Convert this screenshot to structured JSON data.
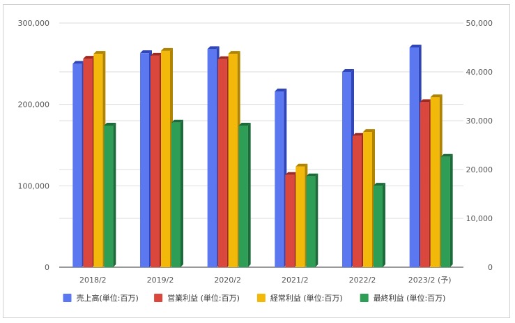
{
  "chart_data": {
    "type": "bar",
    "style": "3d-clustered",
    "title": "",
    "xlabel": "",
    "ylabel": "",
    "categories": [
      "2018/2",
      "2019/2",
      "2020/2",
      "2021/2",
      "2022/2",
      "2023/2 (予)"
    ],
    "y_left": {
      "min": 0,
      "max": 300000,
      "ticks": [
        "0",
        "100,000",
        "200,000",
        "300,000"
      ]
    },
    "y_right": {
      "min": 0,
      "max": 50000,
      "ticks": [
        "0",
        "10,000",
        "20,000",
        "30,000",
        "40,000",
        "50,000"
      ]
    },
    "series": [
      {
        "name": "売上高(単位:百万)",
        "axis": "left",
        "color": "#5b78f0",
        "side": "#2f45b8",
        "values": [
          250000,
          263000,
          268000,
          216000,
          240000,
          270000
        ]
      },
      {
        "name": "営業利益 (単位:百万)",
        "axis": "right",
        "color": "#d9473d",
        "side": "#9e2a22",
        "values": [
          42700,
          43300,
          42600,
          18900,
          26900,
          33800
        ]
      },
      {
        "name": "経常利益 (単位:百万)",
        "axis": "right",
        "color": "#f2b90b",
        "side": "#b08300",
        "values": [
          43700,
          44300,
          43700,
          20600,
          27700,
          34800
        ]
      },
      {
        "name": "最終利益 (単位:百万)",
        "axis": "right",
        "color": "#2e9e57",
        "side": "#1d6b3a",
        "values": [
          29000,
          29600,
          29000,
          18600,
          16700,
          22600
        ]
      }
    ],
    "grid": true,
    "legend_position": "bottom"
  }
}
